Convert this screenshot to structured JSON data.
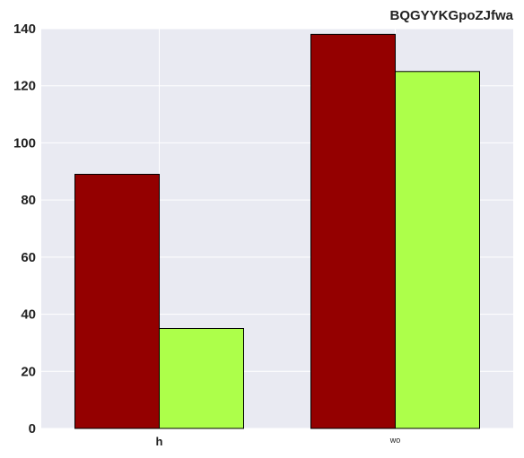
{
  "chart_data": {
    "type": "bar",
    "title": "BQGYYKGpoZJfwa",
    "xlabel": "",
    "ylabel": "",
    "categories": [
      "h",
      "wo"
    ],
    "series": [
      {
        "values": [
          89,
          138
        ],
        "color": "#940000"
      },
      {
        "values": [
          35,
          125
        ],
        "color": "#adff4a"
      }
    ],
    "ylim": [
      0,
      140
    ],
    "yticks": [
      0,
      20,
      40,
      60,
      80,
      100,
      120,
      140
    ],
    "grid": true,
    "background": "#e9eaf2",
    "grid_color": "#ffffff"
  }
}
